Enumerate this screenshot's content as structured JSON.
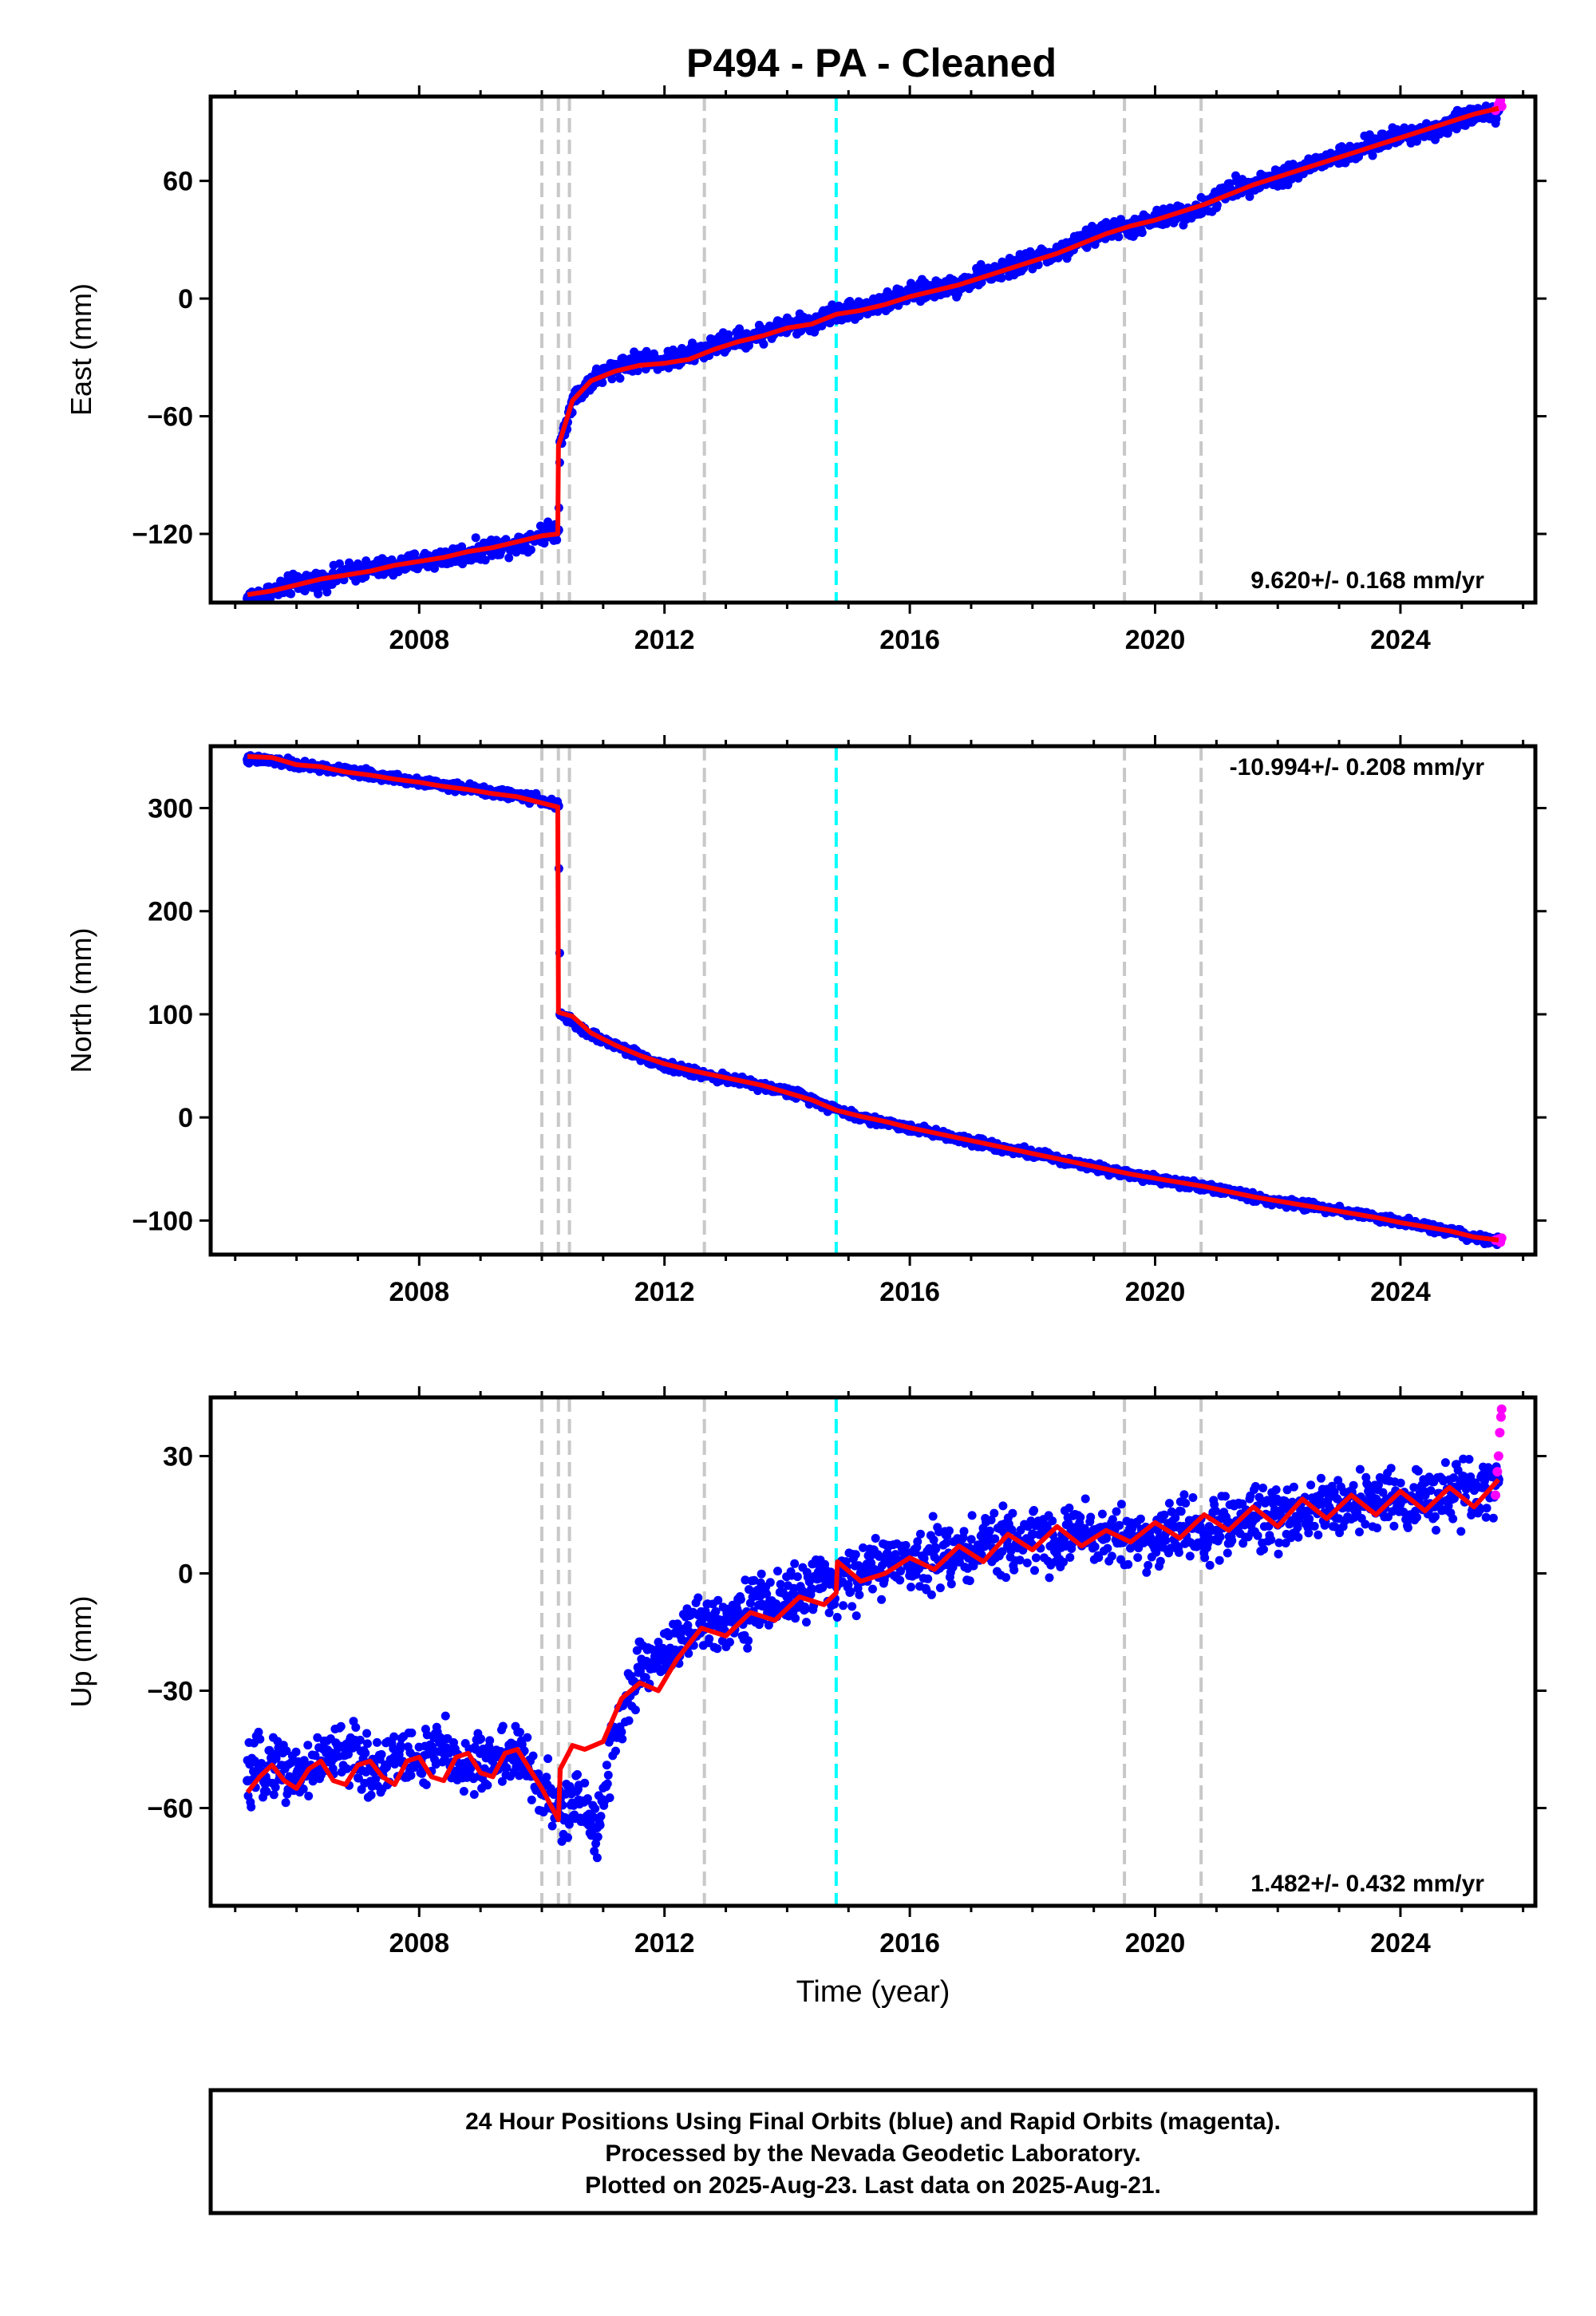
{
  "title": "P494  - PA - Cleaned",
  "chart_data": [
    {
      "type": "scatter",
      "panel": "east",
      "ylabel": "East (mm)",
      "xlabel": "",
      "xlim": [
        2004.6,
        2026.2
      ],
      "ylim": [
        -155,
        103
      ],
      "yticks": [
        -120,
        -60,
        0,
        60
      ],
      "xticks": [
        2008,
        2012,
        2016,
        2020,
        2024
      ],
      "rate_label": "9.620+/- 0.168 mm/yr",
      "rate_position": "bottom-right",
      "series": [
        {
          "name": "Final Orbits",
          "color": "#0000ff",
          "marker": "dot",
          "x": [
            2005.2,
            2005.6,
            2006.0,
            2006.4,
            2006.8,
            2007.2,
            2007.6,
            2008.0,
            2008.4,
            2008.8,
            2009.2,
            2009.6,
            2010.0,
            2010.27,
            2010.3,
            2010.5,
            2010.8,
            2011.2,
            2011.6,
            2012.0,
            2012.4,
            2012.8,
            2013.2,
            2013.6,
            2014.0,
            2014.4,
            2014.8,
            2015.2,
            2015.6,
            2016.0,
            2016.4,
            2016.8,
            2017.2,
            2017.6,
            2018.0,
            2018.4,
            2018.8,
            2019.2,
            2019.6,
            2020.0,
            2020.4,
            2020.8,
            2021.2,
            2021.6,
            2022.0,
            2022.4,
            2022.8,
            2023.2,
            2023.6,
            2024.0,
            2024.4,
            2024.8,
            2025.2,
            2025.6
          ],
          "y": [
            -153,
            -150,
            -145,
            -144,
            -140,
            -138,
            -137,
            -134,
            -132,
            -130,
            -127,
            -125,
            -120,
            -118,
            -73,
            -52,
            -42,
            -35,
            -31,
            -32,
            -29,
            -24,
            -21,
            -18,
            -14,
            -13,
            -7,
            -5,
            -2,
            2,
            5,
            7,
            12,
            15,
            20,
            23,
            29,
            35,
            36,
            40,
            43,
            47,
            55,
            59,
            62,
            66,
            71,
            74,
            79,
            83,
            85,
            89,
            94,
            96
          ]
        },
        {
          "name": "Rapid Orbits",
          "color": "#ff00ff",
          "marker": "dot",
          "x": [
            2025.55,
            2025.6,
            2025.63,
            2025.65
          ],
          "y": [
            96,
            99,
            101,
            98
          ]
        },
        {
          "name": "Model",
          "color": "#ff0000",
          "marker": "line",
          "x": [
            2005.2,
            2005.6,
            2006.0,
            2006.4,
            2006.8,
            2007.2,
            2007.6,
            2008.0,
            2008.4,
            2008.8,
            2009.2,
            2009.6,
            2010.0,
            2010.26,
            2010.27,
            2010.5,
            2010.8,
            2011.2,
            2011.6,
            2012.0,
            2012.4,
            2012.8,
            2013.2,
            2013.6,
            2014.0,
            2014.4,
            2014.8,
            2015.2,
            2015.6,
            2016.0,
            2016.4,
            2016.8,
            2017.2,
            2017.6,
            2018.0,
            2018.4,
            2018.8,
            2019.2,
            2019.6,
            2020.0,
            2020.4,
            2020.8,
            2021.2,
            2021.6,
            2022.0,
            2022.4,
            2022.8,
            2023.2,
            2023.6,
            2024.0,
            2024.4,
            2024.8,
            2025.2,
            2025.6
          ],
          "y": [
            -151,
            -149,
            -146,
            -143,
            -141,
            -139,
            -136,
            -134,
            -132,
            -129,
            -127,
            -124,
            -121,
            -120,
            -75,
            -52,
            -42,
            -37,
            -34,
            -33,
            -31,
            -26,
            -22,
            -19,
            -15,
            -13,
            -8,
            -6,
            -3,
            1,
            4,
            7,
            11,
            15,
            19,
            23,
            28,
            33,
            37,
            40,
            44,
            48,
            53,
            58,
            62,
            66,
            70,
            74,
            78,
            82,
            86,
            90,
            94,
            97
          ]
        }
      ]
    },
    {
      "type": "scatter",
      "panel": "north",
      "ylabel": "North (mm)",
      "xlabel": "",
      "xlim": [
        2004.6,
        2026.2
      ],
      "ylim": [
        -133,
        360
      ],
      "yticks": [
        -100,
        0,
        100,
        200,
        300
      ],
      "xticks": [
        2008,
        2012,
        2016,
        2020,
        2024
      ],
      "rate_label": "-10.994+/- 0.208 mm/yr",
      "rate_position": "top-right",
      "series": [
        {
          "name": "Final Orbits",
          "color": "#0000ff",
          "marker": "dot",
          "x": [
            2005.2,
            2005.6,
            2006.0,
            2006.4,
            2006.8,
            2007.2,
            2007.6,
            2008.0,
            2008.4,
            2008.8,
            2009.2,
            2009.6,
            2010.0,
            2010.27,
            2010.3,
            2010.5,
            2010.8,
            2011.2,
            2011.6,
            2012.0,
            2012.4,
            2012.8,
            2013.2,
            2013.6,
            2014.0,
            2014.4,
            2014.8,
            2015.2,
            2015.6,
            2016.0,
            2016.4,
            2016.8,
            2017.2,
            2017.6,
            2018.0,
            2018.4,
            2018.8,
            2019.2,
            2019.6,
            2020.0,
            2020.4,
            2020.8,
            2021.2,
            2021.6,
            2022.0,
            2022.4,
            2022.8,
            2023.2,
            2023.6,
            2024.0,
            2024.4,
            2024.8,
            2025.2,
            2025.6
          ],
          "y": [
            347,
            346,
            342,
            339,
            336,
            332,
            329,
            326,
            322,
            319,
            315,
            312,
            308,
            302,
            100,
            92,
            80,
            70,
            60,
            50,
            45,
            40,
            35,
            30,
            25,
            18,
            8,
            0,
            -5,
            -10,
            -15,
            -20,
            -25,
            -30,
            -35,
            -40,
            -45,
            -50,
            -55,
            -60,
            -63,
            -67,
            -72,
            -77,
            -82,
            -85,
            -88,
            -92,
            -97,
            -102,
            -106,
            -110,
            -117,
            -120
          ]
        },
        {
          "name": "Rapid Orbits",
          "color": "#ff00ff",
          "marker": "dot",
          "x": [
            2025.55,
            2025.6,
            2025.63,
            2025.65
          ],
          "y": [
            -119,
            -118,
            -121,
            -117
          ]
        },
        {
          "name": "Model",
          "color": "#ff0000",
          "marker": "line",
          "x": [
            2005.2,
            2005.6,
            2006.0,
            2006.4,
            2006.8,
            2007.2,
            2007.6,
            2008.0,
            2008.4,
            2008.8,
            2009.2,
            2009.6,
            2010.0,
            2010.26,
            2010.27,
            2010.5,
            2010.8,
            2011.2,
            2011.6,
            2012.0,
            2012.4,
            2012.8,
            2013.2,
            2013.6,
            2014.0,
            2014.4,
            2014.8,
            2015.2,
            2015.6,
            2016.0,
            2016.4,
            2016.8,
            2017.2,
            2017.6,
            2018.0,
            2018.4,
            2018.8,
            2019.2,
            2019.6,
            2020.0,
            2020.4,
            2020.8,
            2021.2,
            2021.6,
            2022.0,
            2022.4,
            2022.8,
            2023.2,
            2023.6,
            2024.0,
            2024.4,
            2024.8,
            2025.2,
            2025.6
          ],
          "y": [
            350,
            349,
            342,
            340,
            335,
            332,
            328,
            325,
            321,
            318,
            314,
            311,
            305,
            301,
            102,
            98,
            82,
            70,
            60,
            52,
            46,
            41,
            36,
            31,
            24,
            17,
            7,
            1,
            -4,
            -10,
            -15,
            -20,
            -25,
            -30,
            -35,
            -40,
            -45,
            -50,
            -55,
            -59,
            -63,
            -67,
            -72,
            -77,
            -81,
            -85,
            -89,
            -93,
            -97,
            -102,
            -106,
            -110,
            -116,
            -119
          ]
        }
      ]
    },
    {
      "type": "scatter",
      "panel": "up",
      "ylabel": "Up (mm)",
      "xlabel": "Time (year)",
      "xlim": [
        2004.6,
        2026.2
      ],
      "ylim": [
        -85,
        45
      ],
      "yticks": [
        -60,
        -30,
        0,
        30
      ],
      "xticks": [
        2008,
        2012,
        2016,
        2020,
        2024
      ],
      "rate_label": "1.482+/- 0.432 mm/yr",
      "rate_position": "bottom-right",
      "series": [
        {
          "name": "Final Orbits",
          "color": "#0000ff",
          "marker": "dot",
          "x": [
            2005.2,
            2005.6,
            2006.0,
            2006.4,
            2006.8,
            2007.2,
            2007.6,
            2008.0,
            2008.4,
            2008.8,
            2009.2,
            2009.6,
            2010.0,
            2010.3,
            2010.6,
            2010.9,
            2011.2,
            2011.6,
            2012.0,
            2012.4,
            2012.8,
            2013.2,
            2013.6,
            2014.0,
            2014.4,
            2014.8,
            2015.2,
            2015.6,
            2016.0,
            2016.4,
            2016.8,
            2017.2,
            2017.6,
            2018.0,
            2018.4,
            2018.8,
            2019.2,
            2019.6,
            2020.0,
            2020.4,
            2020.8,
            2021.2,
            2021.6,
            2022.0,
            2022.4,
            2022.8,
            2023.2,
            2023.6,
            2024.0,
            2024.4,
            2024.8,
            2025.2,
            2025.6
          ],
          "y": [
            -53,
            -48,
            -52,
            -48,
            -45,
            -50,
            -47,
            -48,
            -45,
            -50,
            -47,
            -46,
            -55,
            -62,
            -58,
            -65,
            -40,
            -25,
            -20,
            -15,
            -12,
            -10,
            -8,
            -6,
            -4,
            -3,
            0,
            3,
            2,
            6,
            4,
            8,
            7,
            10,
            8,
            11,
            9,
            10,
            8,
            12,
            10,
            13,
            14,
            15,
            16,
            18,
            17,
            19,
            18,
            20,
            19,
            22,
            24
          ]
        },
        {
          "name": "Rapid Orbits",
          "color": "#ff00ff",
          "marker": "dot",
          "x": [
            2025.55,
            2025.58,
            2025.6,
            2025.62,
            2025.64,
            2025.65
          ],
          "y": [
            20,
            26,
            30,
            36,
            40,
            42
          ]
        },
        {
          "name": "Model",
          "color": "#ff0000",
          "marker": "line",
          "x": [
            2005.2,
            2005.4,
            2005.6,
            2005.8,
            2006.0,
            2006.2,
            2006.4,
            2006.6,
            2006.8,
            2007.0,
            2007.2,
            2007.4,
            2007.6,
            2007.8,
            2008.0,
            2008.2,
            2008.4,
            2008.6,
            2008.8,
            2009.0,
            2009.2,
            2009.4,
            2009.6,
            2009.8,
            2010.0,
            2010.27,
            2010.3,
            2010.5,
            2010.7,
            2011.0,
            2011.3,
            2011.6,
            2011.9,
            2012.2,
            2012.6,
            2013.0,
            2013.4,
            2013.8,
            2014.2,
            2014.6,
            2014.8,
            2014.82,
            2015.2,
            2015.6,
            2016.0,
            2016.4,
            2016.8,
            2017.2,
            2017.6,
            2018.0,
            2018.4,
            2018.8,
            2019.2,
            2019.6,
            2020.0,
            2020.4,
            2020.8,
            2021.2,
            2021.6,
            2022.0,
            2022.4,
            2022.8,
            2023.2,
            2023.6,
            2024.0,
            2024.4,
            2024.8,
            2025.2,
            2025.6
          ],
          "y": [
            -56,
            -52,
            -49,
            -53,
            -55,
            -50,
            -48,
            -53,
            -54,
            -49,
            -48,
            -52,
            -54,
            -48,
            -47,
            -52,
            -53,
            -47,
            -46,
            -51,
            -52,
            -46,
            -45,
            -50,
            -55,
            -63,
            -50,
            -44,
            -45,
            -43,
            -32,
            -28,
            -30,
            -22,
            -14,
            -16,
            -10,
            -12,
            -6,
            -8,
            -5,
            3,
            -2,
            0,
            4,
            1,
            7,
            3,
            10,
            6,
            12,
            7,
            11,
            8,
            13,
            9,
            15,
            11,
            17,
            12,
            19,
            14,
            20,
            15,
            21,
            16,
            22,
            17,
            24
          ]
        }
      ]
    }
  ],
  "event_lines": {
    "gray_dashed": [
      2010.0,
      2010.27,
      2010.45,
      2012.65,
      2019.5,
      2020.75
    ],
    "cyan_dashed": [
      2014.8
    ],
    "gray_color": "#c8c8c8",
    "cyan_color": "#00ffff"
  },
  "footer": {
    "line1": "24 Hour Positions Using Final Orbits (blue) and Rapid Orbits (magenta).",
    "line2": "Processed by the Nevada Geodetic Laboratory.",
    "line3": "Plotted on 2025-Aug-23. Last data on 2025-Aug-21."
  }
}
